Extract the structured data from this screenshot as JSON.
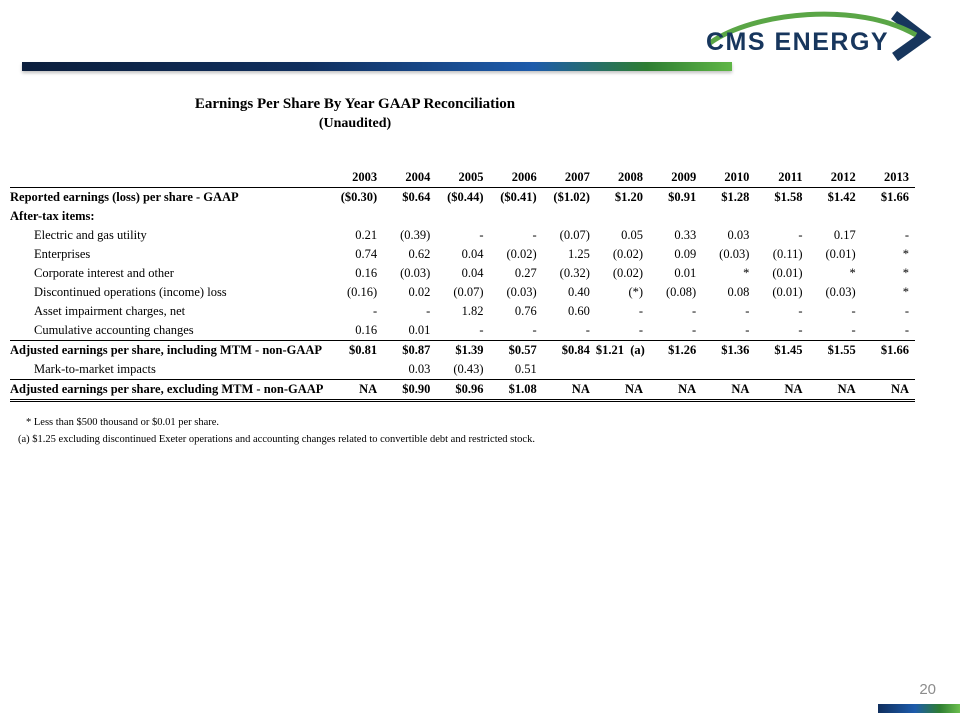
{
  "logo": {
    "text": "CMS ENERGY"
  },
  "title": {
    "line1": "Earnings Per Share By Year GAAP Reconciliation",
    "line2": "(Unaudited)"
  },
  "table": {
    "columns": [
      "2003",
      "2004",
      "2005",
      "2006",
      "2007",
      "2008",
      "2009",
      "2010",
      "2011",
      "2012",
      "2013"
    ],
    "rows": [
      {
        "label": "Reported earnings (loss) per share - GAAP",
        "bold": true,
        "indent": false,
        "top_border": false,
        "double_bottom": false,
        "values": [
          "($0.30)",
          "$0.64",
          "($0.44)",
          "($0.41)",
          "($1.02)",
          "$1.20",
          "$0.91",
          "$1.28",
          "$1.58",
          "$1.42",
          "$1.66"
        ]
      },
      {
        "label": "After-tax items:",
        "bold": true,
        "indent": false,
        "top_border": false,
        "double_bottom": false,
        "values": [
          "",
          "",
          "",
          "",
          "",
          "",
          "",
          "",
          "",
          "",
          ""
        ]
      },
      {
        "label": "Electric and gas utility",
        "bold": false,
        "indent": true,
        "top_border": false,
        "double_bottom": false,
        "values": [
          "0.21",
          "(0.39)",
          "-",
          "-",
          "(0.07)",
          "0.05",
          "0.33",
          "0.03",
          "-",
          "0.17",
          "-"
        ]
      },
      {
        "label": "Enterprises",
        "bold": false,
        "indent": true,
        "top_border": false,
        "double_bottom": false,
        "values": [
          "0.74",
          "0.62",
          "0.04",
          "(0.02)",
          "1.25",
          "(0.02)",
          "0.09",
          "(0.03)",
          "(0.11)",
          "(0.01)",
          "*"
        ]
      },
      {
        "label": "Corporate interest and other",
        "bold": false,
        "indent": true,
        "top_border": false,
        "double_bottom": false,
        "values": [
          "0.16",
          "(0.03)",
          "0.04",
          "0.27",
          "(0.32)",
          "(0.02)",
          "0.01",
          "*",
          "(0.01)",
          "*",
          "*"
        ]
      },
      {
        "label": "Discontinued operations (income) loss",
        "bold": false,
        "indent": true,
        "top_border": false,
        "double_bottom": false,
        "values": [
          "(0.16)",
          "0.02",
          "(0.07)",
          "(0.03)",
          "0.40",
          "(*)",
          "(0.08)",
          "0.08",
          "(0.01)",
          "(0.03)",
          "*"
        ]
      },
      {
        "label": "Asset impairment charges, net",
        "bold": false,
        "indent": true,
        "top_border": false,
        "double_bottom": false,
        "values": [
          "-",
          "-",
          "1.82",
          "0.76",
          "0.60",
          "-",
          "-",
          "-",
          "-",
          "-",
          "-"
        ]
      },
      {
        "label": "Cumulative accounting changes",
        "bold": false,
        "indent": true,
        "top_border": false,
        "double_bottom": false,
        "values": [
          "0.16",
          "0.01",
          "-",
          "-",
          "-",
          "-",
          "-",
          "-",
          "-",
          "-",
          "-"
        ]
      },
      {
        "label": "Adjusted earnings per share, including MTM - non-GAAP",
        "bold": true,
        "indent": false,
        "top_border": true,
        "double_bottom": false,
        "values": [
          "$0.81",
          "$0.87",
          "$1.39",
          "$0.57",
          "$0.84",
          "$1.21  (a)",
          "$1.26",
          "$1.36",
          "$1.45",
          "$1.55",
          "$1.66"
        ]
      },
      {
        "label": "Mark-to-market impacts",
        "bold": false,
        "indent": true,
        "top_border": false,
        "double_bottom": false,
        "values": [
          "",
          "0.03",
          "(0.43)",
          "0.51",
          "",
          "",
          "",
          "",
          "",
          "",
          ""
        ]
      },
      {
        "label": "Adjusted earnings per share, excluding MTM - non-GAAP",
        "bold": true,
        "indent": false,
        "top_border": true,
        "double_bottom": true,
        "values": [
          "NA",
          "$0.90",
          "$0.96",
          "$1.08",
          "NA",
          "NA",
          "NA",
          "NA",
          "NA",
          "NA",
          "NA"
        ]
      }
    ]
  },
  "footnotes": [
    "*  Less than $500 thousand or $0.01 per share.",
    "(a)  $1.25 excluding discontinued Exeter operations and accounting changes related to convertible debt and restricted stock."
  ],
  "page_number": "20",
  "colors": {
    "logo_blue": "#17365d",
    "logo_green": "#5aa646",
    "bar_navy": "#0b1e3c",
    "bar_blue": "#1d5bab",
    "bar_green": "#5fb646",
    "page_number_gray": "#8c8c8c"
  }
}
